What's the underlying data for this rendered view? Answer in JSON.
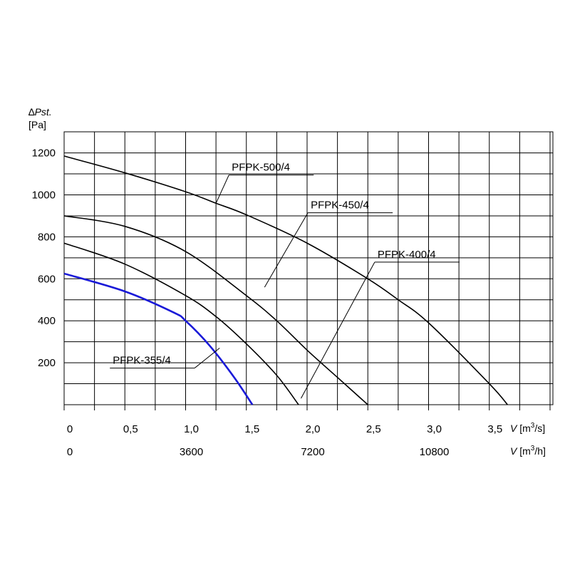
{
  "chart_data": {
    "type": "line",
    "ylabel_symbol": "∆Pst.",
    "ylabel_unit": "[Pa]",
    "y_ticks": [
      "1200",
      "1000",
      "800",
      "600",
      "400",
      "200"
    ],
    "y_tick_values": [
      1200,
      1000,
      800,
      600,
      400,
      200
    ],
    "ylim": [
      0,
      1300
    ],
    "xlim": [
      0,
      4
    ],
    "x_ticks_m3s": [
      "0",
      "0,5",
      "1,0",
      "1,5",
      "2,0",
      "2,5",
      "3,0",
      "3,5"
    ],
    "x_tick_values_m3s": [
      0,
      0.5,
      1.0,
      1.5,
      2.0,
      2.5,
      3.0,
      3.5
    ],
    "x_unit_m3s": {
      "symbol": "V",
      "open": "[m",
      "sup": "3",
      "close": "/s]"
    },
    "x_ticks_m3h": [
      "0",
      "3600",
      "7200",
      "10800"
    ],
    "x_tick_values_m3h_pos": [
      0,
      1.0,
      2.0,
      3.0
    ],
    "x_unit_m3h": {
      "symbol": "V",
      "open": "[m",
      "sup": "3",
      "close": "/h]"
    },
    "grid": true,
    "series": [
      {
        "name": "PFPK-500/4",
        "color": "#000000",
        "x": [
          0,
          0.5,
          1.0,
          1.25,
          1.5,
          2.0,
          2.5,
          2.75,
          3.0,
          3.5,
          3.65
        ],
        "y": [
          1185,
          1105,
          1015,
          960,
          905,
          770,
          600,
          500,
          390,
          100,
          0
        ]
      },
      {
        "name": "PFPK-450/4",
        "color": "#000000",
        "x": [
          0,
          0.5,
          1.0,
          1.5,
          1.75,
          2.0,
          2.25,
          2.5
        ],
        "y": [
          900,
          850,
          730,
          520,
          400,
          260,
          130,
          0
        ]
      },
      {
        "name": "PFPK-400/4",
        "color": "#000000",
        "x": [
          0,
          0.5,
          1.0,
          1.25,
          1.5,
          1.75,
          1.93
        ],
        "y": [
          770,
          670,
          520,
          420,
          290,
          140,
          0
        ]
      },
      {
        "name": "PFPK-355/4",
        "color": "#1a1ad8",
        "x": [
          0,
          0.5,
          0.9,
          1.0,
          1.2,
          1.4,
          1.55
        ],
        "y": [
          625,
          540,
          440,
          400,
          280,
          130,
          0
        ]
      }
    ],
    "labels": [
      {
        "series": 0,
        "anchor_x": 1.25,
        "anchor_y": 960,
        "text_x": 1.38,
        "text_y": 1115
      },
      {
        "series": 1,
        "anchor_x": 1.65,
        "anchor_y": 560,
        "text_x": 2.03,
        "text_y": 935
      },
      {
        "series": 2,
        "anchor_x": 1.95,
        "anchor_y": 30,
        "text_x": 2.58,
        "text_y": 700
      },
      {
        "series": 3,
        "anchor_x": 1.28,
        "anchor_y": 270,
        "text_x": 0.4,
        "text_y": 195
      }
    ]
  }
}
